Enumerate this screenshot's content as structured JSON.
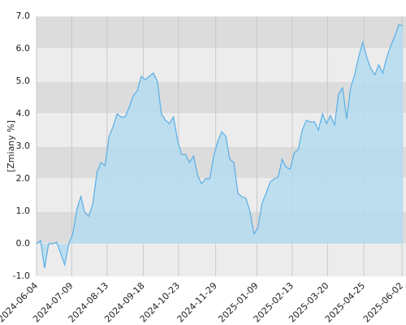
{
  "chart_data": {
    "type": "area",
    "y_label": "[Zmiany %]",
    "x": [
      "2024-06-04",
      "2024-06-08",
      "2024-06-12",
      "2024-06-16",
      "2024-06-20",
      "2024-06-24",
      "2024-06-28",
      "2024-07-02",
      "2024-07-06",
      "2024-07-10",
      "2024-07-14",
      "2024-07-18",
      "2024-07-22",
      "2024-07-26",
      "2024-07-30",
      "2024-08-03",
      "2024-08-07",
      "2024-08-11",
      "2024-08-15",
      "2024-08-19",
      "2024-08-23",
      "2024-08-27",
      "2024-08-31",
      "2024-09-04",
      "2024-09-08",
      "2024-09-12",
      "2024-09-16",
      "2024-09-20",
      "2024-09-24",
      "2024-09-28",
      "2024-10-02",
      "2024-10-06",
      "2024-10-10",
      "2024-10-14",
      "2024-10-18",
      "2024-10-22",
      "2024-10-26",
      "2024-10-30",
      "2024-11-03",
      "2024-11-07",
      "2024-11-11",
      "2024-11-15",
      "2024-11-19",
      "2024-11-23",
      "2024-11-27",
      "2024-12-01",
      "2024-12-05",
      "2024-12-09",
      "2024-12-13",
      "2024-12-17",
      "2024-12-21",
      "2024-12-25",
      "2024-12-29",
      "2025-01-02",
      "2025-01-06",
      "2025-01-10",
      "2025-01-14",
      "2025-01-18",
      "2025-01-22",
      "2025-01-26",
      "2025-01-30",
      "2025-02-03",
      "2025-02-07",
      "2025-02-11",
      "2025-02-15",
      "2025-02-19",
      "2025-02-23",
      "2025-02-27",
      "2025-03-03",
      "2025-03-07",
      "2025-03-11",
      "2025-03-15",
      "2025-03-19",
      "2025-03-23",
      "2025-03-27",
      "2025-03-31",
      "2025-04-04",
      "2025-04-08",
      "2025-04-12",
      "2025-04-16",
      "2025-04-20",
      "2025-04-24",
      "2025-04-28",
      "2025-05-02",
      "2025-05-06",
      "2025-05-10",
      "2025-05-14",
      "2025-05-18",
      "2025-05-22",
      "2025-05-26",
      "2025-05-30",
      "2025-06-03"
    ],
    "series": [
      {
        "color": "#5aaee6",
        "fill": "#b5dcee",
        "values": [
          0.0,
          0.1,
          -0.75,
          0.0,
          0.0,
          0.05,
          -0.3,
          -0.65,
          0.0,
          0.3,
          1.05,
          1.45,
          0.95,
          0.85,
          1.25,
          2.2,
          2.5,
          2.4,
          3.3,
          3.6,
          4.0,
          3.9,
          3.9,
          4.2,
          4.55,
          4.7,
          5.15,
          5.05,
          5.15,
          5.25,
          5.0,
          4.0,
          3.8,
          3.7,
          3.9,
          3.2,
          2.75,
          2.75,
          2.5,
          2.7,
          2.1,
          1.85,
          2.0,
          2.0,
          2.7,
          3.15,
          3.45,
          3.3,
          2.6,
          2.5,
          1.55,
          1.45,
          1.4,
          1.0,
          0.3,
          0.5,
          1.25,
          1.55,
          1.9,
          2.0,
          2.05,
          2.6,
          2.35,
          2.3,
          2.8,
          2.9,
          3.5,
          3.8,
          3.75,
          3.75,
          3.5,
          4.0,
          3.7,
          3.95,
          3.65,
          4.6,
          4.8,
          3.85,
          4.8,
          5.2,
          5.75,
          6.2,
          5.75,
          5.4,
          5.2,
          5.5,
          5.25,
          5.75,
          6.1,
          6.4,
          6.75,
          6.7
        ]
      }
    ],
    "xlim": [
      "2024-06-04",
      "2025-06-06"
    ],
    "xticks": [
      "2024-06-04",
      "2024-07-09",
      "2024-08-13",
      "2024-09-18",
      "2024-10-23",
      "2024-11-29",
      "2025-01-09",
      "2025-02-13",
      "2025-03-20",
      "2025-04-25",
      "2025-06-02"
    ],
    "ylim": [
      -1,
      7
    ],
    "yticks": [
      {
        "value": -1,
        "label": "-1.0"
      },
      {
        "value": 0,
        "label": "0.0"
      },
      {
        "value": 1,
        "label": "1.0"
      },
      {
        "value": 2,
        "label": "2.0"
      },
      {
        "value": 3,
        "label": "3.0"
      },
      {
        "value": 4,
        "label": "4.0"
      },
      {
        "value": 5,
        "label": "5.0"
      },
      {
        "value": 6,
        "label": "6.0"
      },
      {
        "value": 7,
        "label": "7.0"
      }
    ],
    "grid": true,
    "band_colors": [
      "#ececec",
      "#dcdcdc"
    ]
  }
}
